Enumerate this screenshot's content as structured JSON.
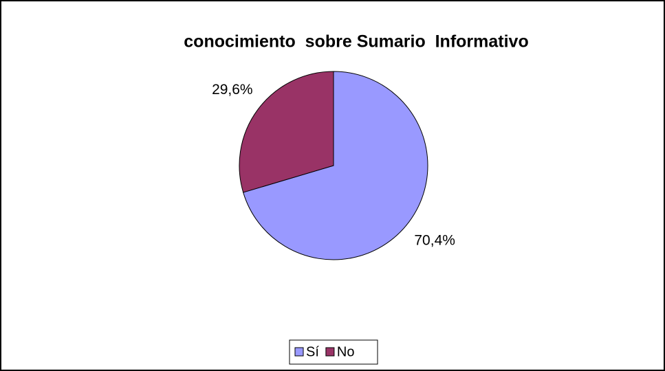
{
  "chart_data": {
    "type": "pie",
    "title": "conocimiento  sobre Sumario  Informativo",
    "categories": [
      "Sí",
      "No"
    ],
    "values": [
      70.4,
      29.6
    ],
    "value_labels": [
      "70,4%",
      "29,6%"
    ],
    "colors": [
      "#9999ff",
      "#993366"
    ],
    "legend": "bottom"
  }
}
